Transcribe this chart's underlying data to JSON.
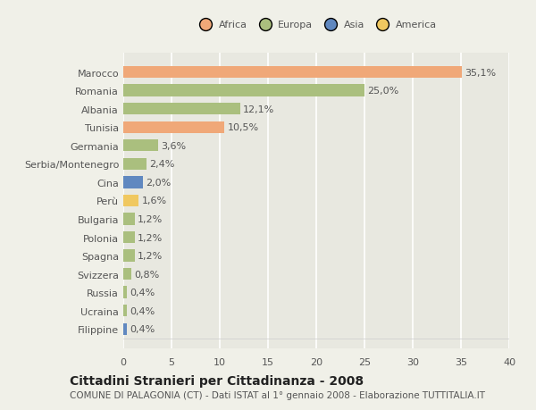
{
  "countries": [
    "Marocco",
    "Romania",
    "Albania",
    "Tunisia",
    "Germania",
    "Serbia/Montenegro",
    "Cina",
    "Perù",
    "Bulgaria",
    "Polonia",
    "Spagna",
    "Svizzera",
    "Russia",
    "Ucraina",
    "Filippine"
  ],
  "values": [
    35.1,
    25.0,
    12.1,
    10.5,
    3.6,
    2.4,
    2.0,
    1.6,
    1.2,
    1.2,
    1.2,
    0.8,
    0.4,
    0.4,
    0.4
  ],
  "labels": [
    "35,1%",
    "25,0%",
    "12,1%",
    "10,5%",
    "3,6%",
    "2,4%",
    "2,0%",
    "1,6%",
    "1,2%",
    "1,2%",
    "1,2%",
    "0,8%",
    "0,4%",
    "0,4%",
    "0,4%"
  ],
  "continent": [
    "Africa",
    "Europa",
    "Europa",
    "Africa",
    "Europa",
    "Europa",
    "Asia",
    "America",
    "Europa",
    "Europa",
    "Europa",
    "Europa",
    "Europa",
    "Europa",
    "Asia"
  ],
  "colors": {
    "Africa": "#F0A878",
    "Europa": "#AABF7E",
    "Asia": "#6088C0",
    "America": "#F0C860"
  },
  "legend_order": [
    "Africa",
    "Europa",
    "Asia",
    "America"
  ],
  "legend_colors": [
    "#F0A878",
    "#AABF7E",
    "#6088C0",
    "#F0C860"
  ],
  "xlim": [
    0,
    40
  ],
  "xticks": [
    0,
    5,
    10,
    15,
    20,
    25,
    30,
    35,
    40
  ],
  "title": "Cittadini Stranieri per Cittadinanza - 2008",
  "subtitle": "COMUNE DI PALAGONIA (CT) - Dati ISTAT al 1° gennaio 2008 - Elaborazione TUTTITALIA.IT",
  "fig_bg": "#F0F0E8",
  "plot_bg": "#E8E8E0",
  "grid_color": "#FFFFFF",
  "label_fontsize": 8,
  "tick_fontsize": 8,
  "title_fontsize": 10,
  "subtitle_fontsize": 7.5,
  "bar_height": 0.65
}
